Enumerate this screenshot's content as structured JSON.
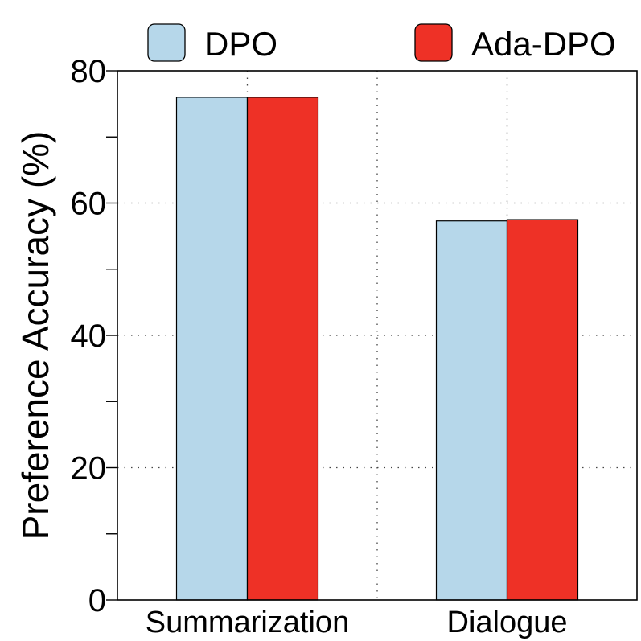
{
  "chart_data": {
    "type": "bar",
    "title": "",
    "xlabel": "",
    "ylabel": "Preference Accuracy (%)",
    "ylim": [
      0,
      80
    ],
    "yticks": [
      0,
      20,
      40,
      60,
      80
    ],
    "categories": [
      "Summarization",
      "Dialogue"
    ],
    "series": [
      {
        "name": "DPO",
        "values": [
          76.0,
          57.3
        ],
        "color": "#b6d7ea"
      },
      {
        "name": "Ada-DPO",
        "values": [
          76.0,
          57.5
        ],
        "color": "#ee3126"
      }
    ],
    "grid": true,
    "legend": "top"
  }
}
